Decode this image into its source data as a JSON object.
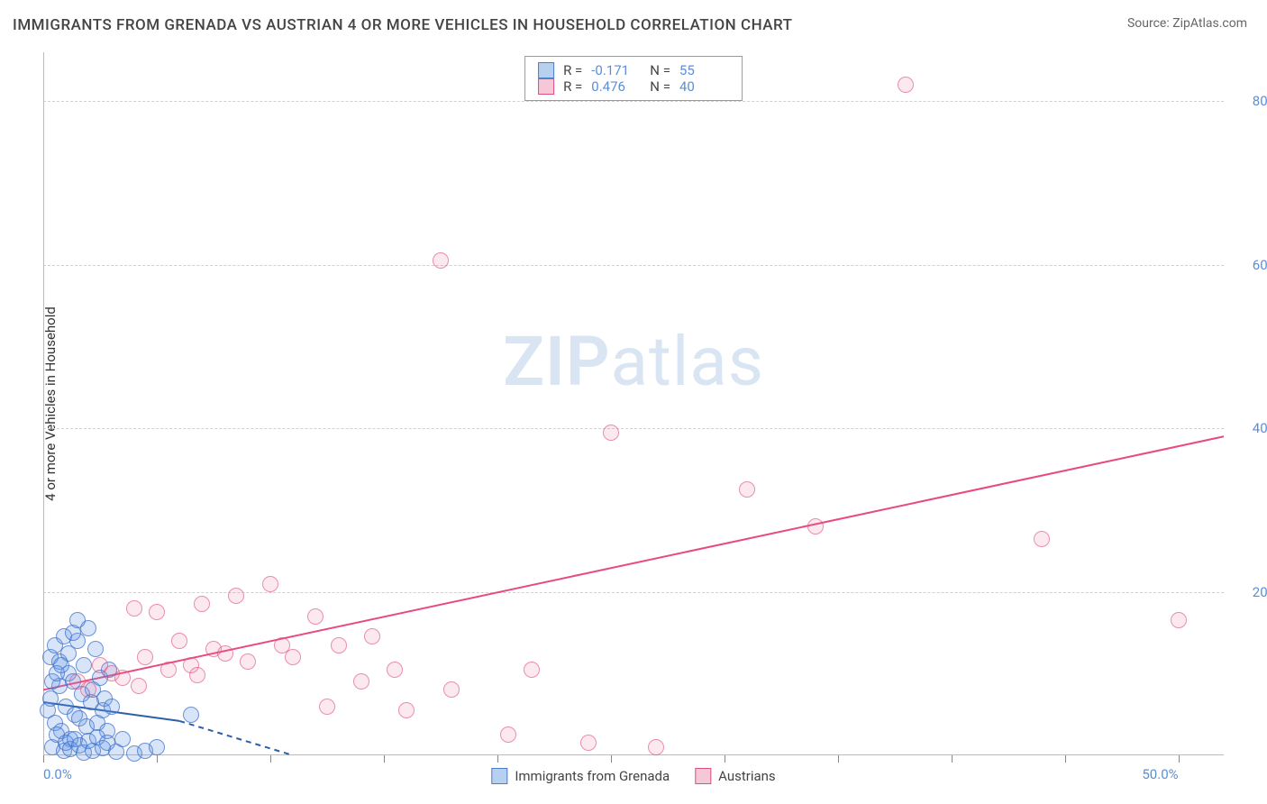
{
  "title": "IMMIGRANTS FROM GRENADA VS AUSTRIAN 4 OR MORE VEHICLES IN HOUSEHOLD CORRELATION CHART",
  "source": "Source: ZipAtlas.com",
  "y_axis_label": "4 or more Vehicles in Household",
  "watermark": {
    "bold": "ZIP",
    "rest": "atlas"
  },
  "chart": {
    "type": "scatter",
    "xlim": [
      0,
      52
    ],
    "ylim": [
      0,
      86
    ],
    "x_ticks": [
      0,
      5,
      10,
      15,
      20,
      25,
      30,
      35,
      40,
      45,
      50
    ],
    "x_tick_labels": {
      "0": "0.0%",
      "50": "50.0%"
    },
    "y_gridlines": [
      20,
      40,
      60,
      80
    ],
    "y_tick_labels": {
      "20": "20.0%",
      "40": "40.0%",
      "60": "60.0%",
      "80": "80.0%"
    },
    "background_color": "#ffffff",
    "grid_color": "#d0d0d0",
    "tick_label_color": "#5a8fd6",
    "series": [
      {
        "name": "Immigrants from Grenada",
        "color_fill": "rgba(100,150,230,0.25)",
        "color_stroke": "#4a7fc8",
        "swatch_fill": "#b8d0f0",
        "swatch_border": "#4a7fc8",
        "R": "-0.171",
        "N": "55",
        "trend": {
          "x1": 0,
          "y1": 6.5,
          "x2": 6,
          "y2": 4.2,
          "solid_until_x": 6,
          "dash_to_x": 11,
          "dash_to_y": 0,
          "color": "#2d5fa8",
          "width": 2
        },
        "points": [
          [
            0.2,
            5.5
          ],
          [
            0.3,
            7.0
          ],
          [
            0.5,
            4.0
          ],
          [
            0.7,
            8.5
          ],
          [
            0.8,
            3.0
          ],
          [
            1.0,
            6.0
          ],
          [
            1.1,
            10.0
          ],
          [
            1.2,
            2.0
          ],
          [
            1.3,
            9.0
          ],
          [
            1.4,
            5.0
          ],
          [
            1.5,
            14.0
          ],
          [
            1.6,
            4.5
          ],
          [
            1.7,
            7.5
          ],
          [
            1.8,
            11.0
          ],
          [
            1.9,
            3.5
          ],
          [
            2.0,
            15.5
          ],
          [
            2.1,
            6.5
          ],
          [
            2.2,
            8.0
          ],
          [
            2.3,
            13.0
          ],
          [
            2.4,
            4.0
          ],
          [
            2.5,
            9.5
          ],
          [
            2.6,
            5.5
          ],
          [
            2.7,
            7.0
          ],
          [
            2.8,
            3.0
          ],
          [
            2.9,
            10.5
          ],
          [
            3.0,
            6.0
          ],
          [
            0.4,
            1.0
          ],
          [
            0.6,
            2.5
          ],
          [
            0.9,
            0.5
          ],
          [
            1.0,
            1.5
          ],
          [
            1.2,
            0.8
          ],
          [
            1.4,
            2.0
          ],
          [
            1.6,
            1.2
          ],
          [
            1.8,
            0.3
          ],
          [
            2.0,
            1.8
          ],
          [
            2.2,
            0.6
          ],
          [
            2.4,
            2.2
          ],
          [
            2.6,
            0.9
          ],
          [
            2.8,
            1.5
          ],
          [
            3.2,
            0.4
          ],
          [
            3.5,
            2.0
          ],
          [
            4.0,
            0.2
          ],
          [
            4.5,
            0.5
          ],
          [
            5.0,
            1.0
          ],
          [
            6.5,
            5.0
          ],
          [
            0.3,
            12.0
          ],
          [
            0.5,
            13.5
          ],
          [
            0.7,
            11.5
          ],
          [
            0.9,
            14.5
          ],
          [
            1.1,
            12.5
          ],
          [
            1.3,
            15.0
          ],
          [
            1.5,
            16.5
          ],
          [
            0.4,
            9.0
          ],
          [
            0.6,
            10.0
          ],
          [
            0.8,
            11.0
          ]
        ]
      },
      {
        "name": "Austrians",
        "color_fill": "rgba(235,110,150,0.15)",
        "color_stroke": "#dc5082",
        "swatch_fill": "#f5c8d8",
        "swatch_border": "#dc5082",
        "R": "0.476",
        "N": "40",
        "trend": {
          "x1": 0,
          "y1": 8.0,
          "x2": 52,
          "y2": 39.0,
          "color": "#e84a7f",
          "width": 2
        },
        "points": [
          [
            1.5,
            9.0
          ],
          [
            2.0,
            8.0
          ],
          [
            2.5,
            11.0
          ],
          [
            3.0,
            10.0
          ],
          [
            3.5,
            9.5
          ],
          [
            4.0,
            18.0
          ],
          [
            4.5,
            12.0
          ],
          [
            5.0,
            17.5
          ],
          [
            5.5,
            10.5
          ],
          [
            6.0,
            14.0
          ],
          [
            6.5,
            11.0
          ],
          [
            7.0,
            18.5
          ],
          [
            7.5,
            13.0
          ],
          [
            8.0,
            12.5
          ],
          [
            8.5,
            19.5
          ],
          [
            9.0,
            11.5
          ],
          [
            10.0,
            21.0
          ],
          [
            10.5,
            13.5
          ],
          [
            11.0,
            12.0
          ],
          [
            12.0,
            17.0
          ],
          [
            12.5,
            6.0
          ],
          [
            13.0,
            13.5
          ],
          [
            14.0,
            9.0
          ],
          [
            14.5,
            14.5
          ],
          [
            15.5,
            10.5
          ],
          [
            16.0,
            5.5
          ],
          [
            17.5,
            60.5
          ],
          [
            18.0,
            8.0
          ],
          [
            20.5,
            2.5
          ],
          [
            21.5,
            10.5
          ],
          [
            24.0,
            1.5
          ],
          [
            25.0,
            39.5
          ],
          [
            27.0,
            1.0
          ],
          [
            31.0,
            32.5
          ],
          [
            34.0,
            28.0
          ],
          [
            38.0,
            82.0
          ],
          [
            44.0,
            26.5
          ],
          [
            50.0,
            16.5
          ],
          [
            4.2,
            8.5
          ],
          [
            6.8,
            9.8
          ]
        ]
      }
    ],
    "bottom_legend": [
      {
        "label": "Immigrants from Grenada",
        "swatch_fill": "#b8d0f0",
        "swatch_border": "#4a7fc8"
      },
      {
        "label": "Austrians",
        "swatch_fill": "#f5c8d8",
        "swatch_border": "#dc5082"
      }
    ]
  }
}
